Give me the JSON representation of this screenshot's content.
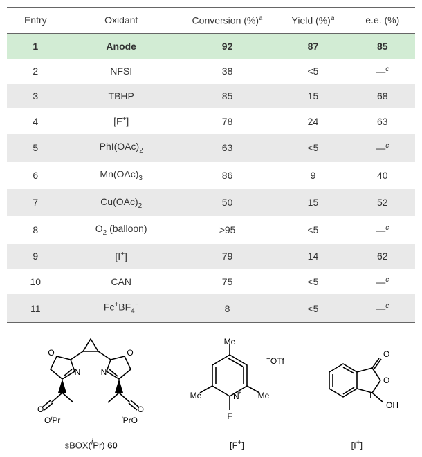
{
  "table": {
    "columns": [
      "Entry",
      "Oxidant",
      "Conversion (%)",
      "Yield (%)",
      "e.e. (%)"
    ],
    "col_super": [
      "",
      "",
      "a",
      "a",
      ""
    ],
    "col_widths": [
      "14%",
      "28%",
      "24%",
      "18%",
      "16%"
    ],
    "rows": [
      {
        "entry": "1",
        "oxidant": "Anode",
        "conv": "92",
        "yield": "87",
        "ee": "85",
        "highlight": true
      },
      {
        "entry": "2",
        "oxidant": "NFSI",
        "conv": "38",
        "yield": "<5",
        "ee_dash": true,
        "ee_sup": "c"
      },
      {
        "entry": "3",
        "oxidant": "TBHP",
        "conv": "85",
        "yield": "15",
        "ee": "68",
        "alt": true
      },
      {
        "entry": "4",
        "oxidant_html": "[F<span class='sup'>+</span>]",
        "conv": "78",
        "yield": "24",
        "ee": "63"
      },
      {
        "entry": "5",
        "oxidant_html": "PhI(OAc)<span class='sub'>2</span>",
        "conv": "63",
        "yield": "<5",
        "ee_dash": true,
        "ee_sup": "c",
        "alt": true
      },
      {
        "entry": "6",
        "oxidant_html": "Mn(OAc)<span class='sub'>3</span>",
        "conv": "86",
        "yield": "9",
        "ee": "40"
      },
      {
        "entry": "7",
        "oxidant_html": "Cu(OAc)<span class='sub'>2</span>",
        "conv": "50",
        "yield": "15",
        "ee": "52",
        "alt": true
      },
      {
        "entry": "8",
        "oxidant_html": "O<span class='sub'>2</span> (balloon)",
        "conv": ">95",
        "yield": "<5",
        "ee_dash": true,
        "ee_sup": "c"
      },
      {
        "entry": "9",
        "oxidant_html": "[I<span class='sup'>+</span>]",
        "conv": "79",
        "yield": "14",
        "ee": "62",
        "alt": true
      },
      {
        "entry": "10",
        "oxidant": "CAN",
        "conv": "75",
        "yield": "<5",
        "ee_dash": true,
        "ee_sup": "c"
      },
      {
        "entry": "11",
        "oxidant_html": "Fc<span class='sup'>+</span>BF<span class='sub'>4</span><span class='sup'>−</span>",
        "conv": "8",
        "yield": "<5",
        "ee_dash": true,
        "ee_sup": "c",
        "alt": true
      }
    ],
    "header_bg": "#ffffff",
    "highlight_bg": "#d2ecd4",
    "alt_bg": "#e9e9e9",
    "border_color": "#666666",
    "font_size": 14
  },
  "structures": {
    "items": [
      {
        "label_html": "sBOX(<span style='font-style:italic'><sup>i</sup></span>Pr) <b>60</b>",
        "name": "sbox-ipr-60"
      },
      {
        "label_html": "[F<span class='sup'>+</span>]",
        "name": "f-plus"
      },
      {
        "label_html": "[I<span class='sup'>+</span>]",
        "name": "i-plus"
      }
    ]
  }
}
